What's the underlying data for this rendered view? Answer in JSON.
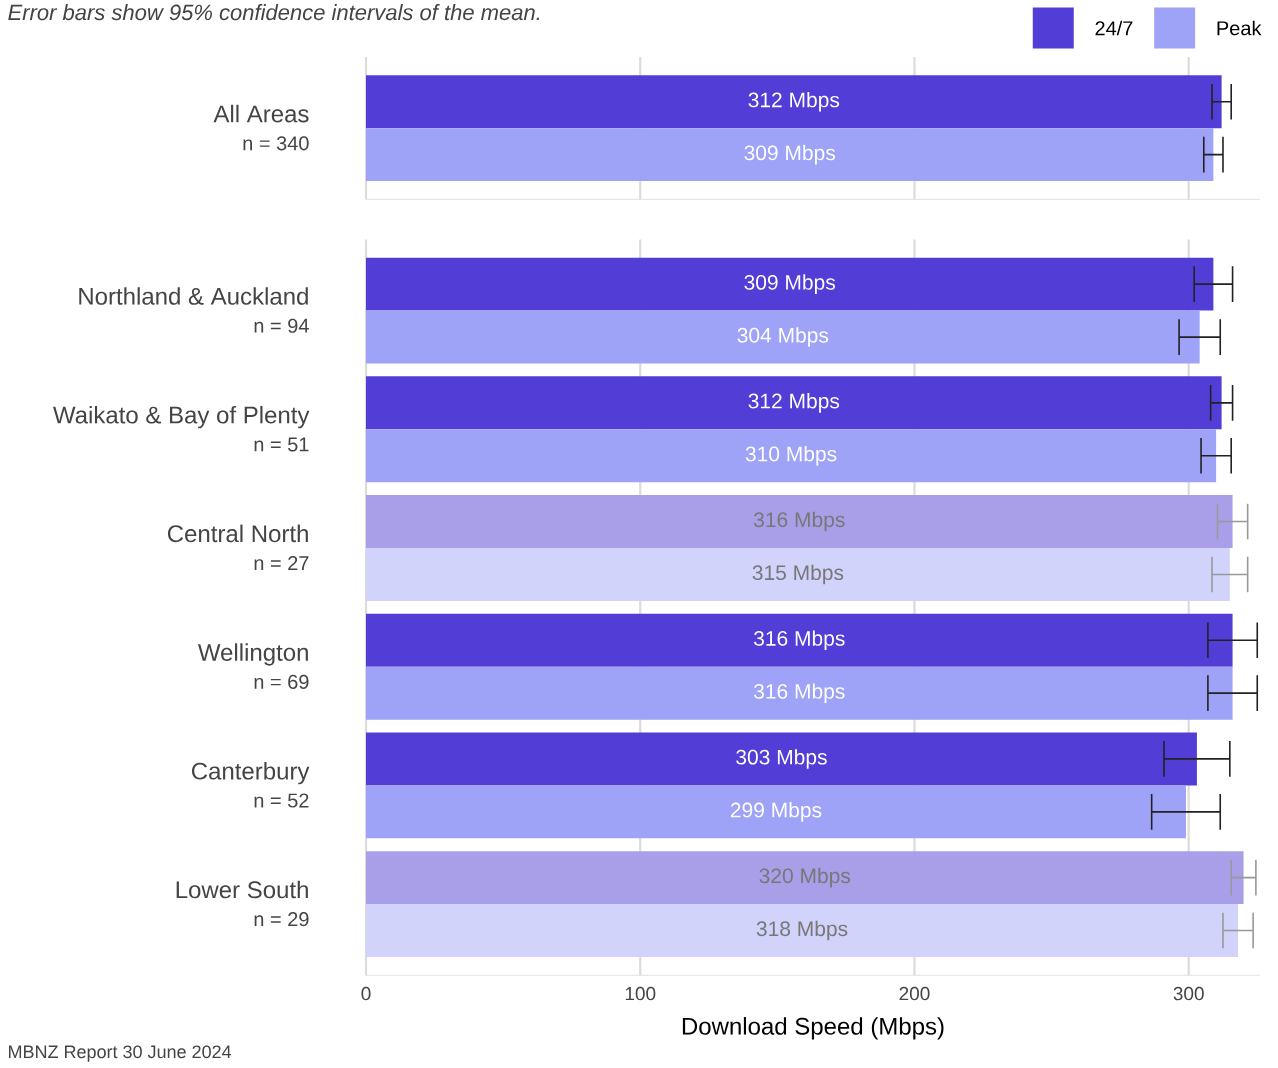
{
  "chart_data": [
    {
      "type": "bar",
      "orientation": "horizontal",
      "subtitle": "Error bars show 95% confidence intervals of the mean.",
      "categories": [
        "All Areas"
      ],
      "annotations": [
        "n = 340"
      ],
      "xlim": [
        0,
        326
      ],
      "xticks": [
        0,
        100,
        200,
        300
      ],
      "grid": "x",
      "tick_labels": "y",
      "legend": "top right",
      "series": [
        {
          "name": "24/7",
          "color": "#523ed6",
          "colors": [
            "#523ed6"
          ],
          "values": [
            312
          ],
          "errors": [
            3.5
          ],
          "value_labels": [
            "312 Mbps"
          ]
        },
        {
          "name": "Peak",
          "color": "#9ea3f8",
          "colors": [
            "#9ea3f8"
          ],
          "values": [
            309
          ],
          "errors": [
            3.5
          ],
          "value_labels": [
            "309 Mbps"
          ]
        }
      ]
    },
    {
      "type": "bar",
      "orientation": "horizontal",
      "xlabel": "Download Speed (Mbps)",
      "categories": [
        "Northland & Auckland",
        "Waikato & Bay of Plenty",
        "Central North",
        "Wellington",
        "Canterbury",
        "Lower South"
      ],
      "annotations": [
        "n = 94",
        "n = 51",
        "n = 27",
        "n = 69",
        "n = 52",
        "n = 29",
        "MBNZ Report 30 June 2024"
      ],
      "xlim": [
        0,
        326
      ],
      "xticks": [
        0,
        100,
        200,
        300
      ],
      "grid": "x",
      "series": [
        {
          "colors": [
            "#523ed6",
            "#523ed6",
            "#a99fe8",
            "#523ed6",
            "#523ed6",
            "#a99fe8"
          ],
          "values": [
            309,
            312,
            316,
            316,
            303,
            320
          ],
          "errors": [
            7,
            4,
            5.5,
            9,
            12,
            4.5
          ],
          "value_labels": [
            "309 Mbps",
            "312 Mbps",
            "316 Mbps",
            "316 Mbps",
            "303 Mbps",
            "320 Mbps"
          ]
        },
        {
          "colors": [
            "#9ea3f8",
            "#9ea3f8",
            "#d1d3fb",
            "#9ea3f8",
            "#9ea3f8",
            "#d1d3fb"
          ],
          "values": [
            304,
            310,
            315,
            316,
            299,
            318
          ],
          "errors": [
            7.5,
            5.5,
            6.5,
            9,
            12.5,
            5.5
          ],
          "value_labels": [
            "304 Mbps",
            "310 Mbps",
            "315 Mbps",
            "316 Mbps",
            "299 Mbps",
            "318 Mbps"
          ]
        }
      ]
    }
  ]
}
